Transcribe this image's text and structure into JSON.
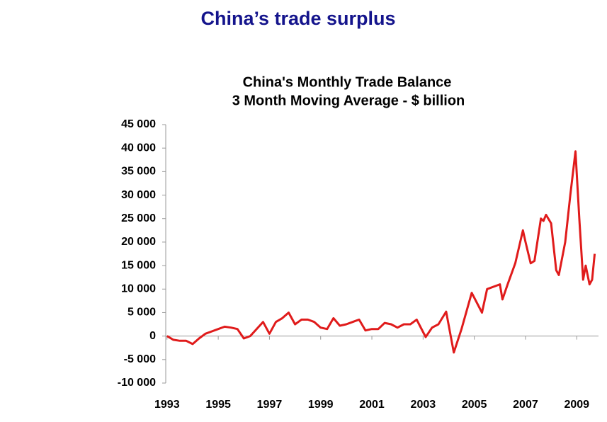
{
  "page_title": "China’s trade surplus",
  "chart_data": {
    "type": "line",
    "title": "China's Monthly Trade Balance",
    "subtitle": "3 Month Moving Average - $ billion",
    "color": "#e01b1b",
    "x": [
      1993.0,
      1993.25,
      1993.5,
      1993.75,
      1994.0,
      1994.25,
      1994.5,
      1994.75,
      1995.0,
      1995.25,
      1995.5,
      1995.75,
      1996.0,
      1996.25,
      1996.5,
      1996.75,
      1997.0,
      1997.25,
      1997.5,
      1997.75,
      1998.0,
      1998.25,
      1998.5,
      1998.75,
      1999.0,
      1999.25,
      1999.5,
      1999.75,
      2000.0,
      2000.25,
      2000.5,
      2000.75,
      2001.0,
      2001.25,
      2001.5,
      2001.75,
      2002.0,
      2002.25,
      2002.5,
      2002.75,
      2003.1,
      2003.35,
      2003.6,
      2003.9,
      2004.2,
      2004.5,
      2004.9,
      2005.3,
      2005.5,
      2006.0,
      2006.1,
      2006.3,
      2006.6,
      2006.9,
      2007.0,
      2007.2,
      2007.35,
      2007.6,
      2007.7,
      2007.8,
      2008.0,
      2008.2,
      2008.3,
      2008.55,
      2008.75,
      2008.95,
      2009.1,
      2009.25,
      2009.35,
      2009.5,
      2009.6,
      2009.7
    ],
    "values": [
      0,
      -800,
      -1000,
      -1000,
      -1700,
      -500,
      500,
      1000,
      1500,
      2000,
      1800,
      1500,
      -500,
      0,
      1500,
      3000,
      500,
      3000,
      3800,
      5000,
      2500,
      3500,
      3500,
      3000,
      1800,
      1500,
      3800,
      2200,
      2500,
      3000,
      3500,
      1200,
      1500,
      1500,
      2800,
      2500,
      1800,
      2500,
      2500,
      3500,
      -200,
      1800,
      2500,
      5200,
      -3500,
      1500,
      9200,
      5000,
      10000,
      11000,
      7800,
      11000,
      15500,
      22500,
      20000,
      15500,
      16000,
      25000,
      24500,
      25800,
      24000,
      14000,
      13000,
      20000,
      30000,
      39300,
      25000,
      12000,
      15000,
      11000,
      12000,
      17500
    ],
    "xlim": [
      1992.95,
      2009.85
    ],
    "xticks": [
      1993,
      1995,
      1997,
      1999,
      2001,
      2003,
      2005,
      2007,
      2009
    ],
    "ylim": [
      -10000,
      45000
    ],
    "yticks": [
      {
        "value": -10000,
        "label": "-10 000"
      },
      {
        "value": -5000,
        "label": "-5 000"
      },
      {
        "value": 0,
        "label": "0"
      },
      {
        "value": 5000,
        "label": "5 000"
      },
      {
        "value": 10000,
        "label": "10 000"
      },
      {
        "value": 15000,
        "label": "15 000"
      },
      {
        "value": 20000,
        "label": "20 000"
      },
      {
        "value": 25000,
        "label": "25 000"
      },
      {
        "value": 30000,
        "label": "30 000"
      },
      {
        "value": 35000,
        "label": "35 000"
      },
      {
        "value": 40000,
        "label": "40 000"
      },
      {
        "value": 45000,
        "label": "45 000"
      }
    ]
  }
}
